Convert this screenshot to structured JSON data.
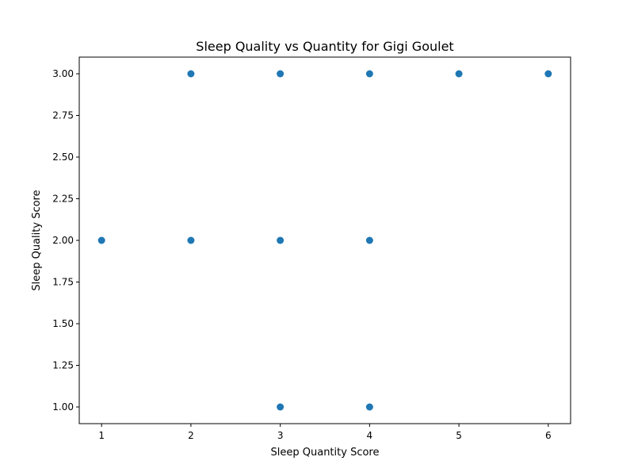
{
  "chart_data": {
    "type": "scatter",
    "title": "Sleep Quality vs Quantity for Gigi Goulet",
    "xlabel": "Sleep Quantity Score",
    "ylabel": "Sleep Quality Score",
    "xlim": [
      0.75,
      6.25
    ],
    "ylim": [
      0.9,
      3.1
    ],
    "x_ticks": [
      1,
      2,
      3,
      4,
      5,
      6
    ],
    "x_tick_labels": [
      "1",
      "2",
      "3",
      "4",
      "5",
      "6"
    ],
    "y_ticks": [
      1.0,
      1.25,
      1.5,
      1.75,
      2.0,
      2.25,
      2.5,
      2.75,
      3.0
    ],
    "y_tick_labels": [
      "1.00",
      "1.25",
      "1.50",
      "1.75",
      "2.00",
      "2.25",
      "2.50",
      "2.75",
      "3.00"
    ],
    "grid": false,
    "marker_color": "#1f77b4",
    "points": [
      {
        "x": 1,
        "y": 2
      },
      {
        "x": 2,
        "y": 3
      },
      {
        "x": 2,
        "y": 2
      },
      {
        "x": 3,
        "y": 3
      },
      {
        "x": 3,
        "y": 2
      },
      {
        "x": 3,
        "y": 1
      },
      {
        "x": 4,
        "y": 3
      },
      {
        "x": 4,
        "y": 2
      },
      {
        "x": 4,
        "y": 1
      },
      {
        "x": 5,
        "y": 3
      },
      {
        "x": 6,
        "y": 3
      }
    ]
  }
}
